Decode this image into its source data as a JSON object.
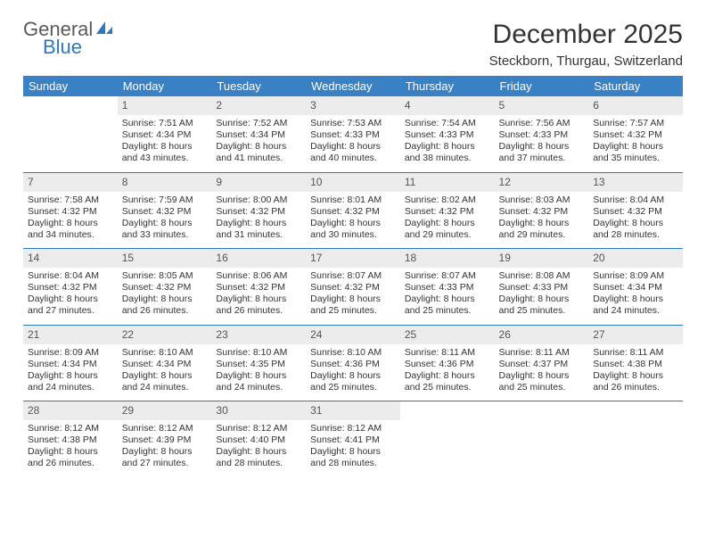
{
  "logo": {
    "general": "General",
    "blue": "Blue"
  },
  "title": "December 2025",
  "location": "Steckborn, Thurgau, Switzerland",
  "colors": {
    "header_bg": "#3a80c4",
    "header_text": "#ffffff",
    "rule": "#2f78bd",
    "daynum_bg": "#ececec",
    "daynum_text": "#555555",
    "body_text": "#333333",
    "logo_gray": "#5a5a5a",
    "logo_blue": "#2f78bd",
    "background": "#ffffff"
  },
  "typography": {
    "title_fontsize": 30,
    "location_fontsize": 15,
    "header_fontsize": 13,
    "cell_fontsize": 10.5,
    "daynum_fontsize": 12
  },
  "day_labels": [
    "Sunday",
    "Monday",
    "Tuesday",
    "Wednesday",
    "Thursday",
    "Friday",
    "Saturday"
  ],
  "weeks": [
    [
      {
        "n": "",
        "sunrise": "",
        "sunset": "",
        "daylight": ""
      },
      {
        "n": "1",
        "sunrise": "Sunrise: 7:51 AM",
        "sunset": "Sunset: 4:34 PM",
        "daylight": "Daylight: 8 hours and 43 minutes."
      },
      {
        "n": "2",
        "sunrise": "Sunrise: 7:52 AM",
        "sunset": "Sunset: 4:34 PM",
        "daylight": "Daylight: 8 hours and 41 minutes."
      },
      {
        "n": "3",
        "sunrise": "Sunrise: 7:53 AM",
        "sunset": "Sunset: 4:33 PM",
        "daylight": "Daylight: 8 hours and 40 minutes."
      },
      {
        "n": "4",
        "sunrise": "Sunrise: 7:54 AM",
        "sunset": "Sunset: 4:33 PM",
        "daylight": "Daylight: 8 hours and 38 minutes."
      },
      {
        "n": "5",
        "sunrise": "Sunrise: 7:56 AM",
        "sunset": "Sunset: 4:33 PM",
        "daylight": "Daylight: 8 hours and 37 minutes."
      },
      {
        "n": "6",
        "sunrise": "Sunrise: 7:57 AM",
        "sunset": "Sunset: 4:32 PM",
        "daylight": "Daylight: 8 hours and 35 minutes."
      }
    ],
    [
      {
        "n": "7",
        "sunrise": "Sunrise: 7:58 AM",
        "sunset": "Sunset: 4:32 PM",
        "daylight": "Daylight: 8 hours and 34 minutes."
      },
      {
        "n": "8",
        "sunrise": "Sunrise: 7:59 AM",
        "sunset": "Sunset: 4:32 PM",
        "daylight": "Daylight: 8 hours and 33 minutes."
      },
      {
        "n": "9",
        "sunrise": "Sunrise: 8:00 AM",
        "sunset": "Sunset: 4:32 PM",
        "daylight": "Daylight: 8 hours and 31 minutes."
      },
      {
        "n": "10",
        "sunrise": "Sunrise: 8:01 AM",
        "sunset": "Sunset: 4:32 PM",
        "daylight": "Daylight: 8 hours and 30 minutes."
      },
      {
        "n": "11",
        "sunrise": "Sunrise: 8:02 AM",
        "sunset": "Sunset: 4:32 PM",
        "daylight": "Daylight: 8 hours and 29 minutes."
      },
      {
        "n": "12",
        "sunrise": "Sunrise: 8:03 AM",
        "sunset": "Sunset: 4:32 PM",
        "daylight": "Daylight: 8 hours and 29 minutes."
      },
      {
        "n": "13",
        "sunrise": "Sunrise: 8:04 AM",
        "sunset": "Sunset: 4:32 PM",
        "daylight": "Daylight: 8 hours and 28 minutes."
      }
    ],
    [
      {
        "n": "14",
        "sunrise": "Sunrise: 8:04 AM",
        "sunset": "Sunset: 4:32 PM",
        "daylight": "Daylight: 8 hours and 27 minutes."
      },
      {
        "n": "15",
        "sunrise": "Sunrise: 8:05 AM",
        "sunset": "Sunset: 4:32 PM",
        "daylight": "Daylight: 8 hours and 26 minutes."
      },
      {
        "n": "16",
        "sunrise": "Sunrise: 8:06 AM",
        "sunset": "Sunset: 4:32 PM",
        "daylight": "Daylight: 8 hours and 26 minutes."
      },
      {
        "n": "17",
        "sunrise": "Sunrise: 8:07 AM",
        "sunset": "Sunset: 4:32 PM",
        "daylight": "Daylight: 8 hours and 25 minutes."
      },
      {
        "n": "18",
        "sunrise": "Sunrise: 8:07 AM",
        "sunset": "Sunset: 4:33 PM",
        "daylight": "Daylight: 8 hours and 25 minutes."
      },
      {
        "n": "19",
        "sunrise": "Sunrise: 8:08 AM",
        "sunset": "Sunset: 4:33 PM",
        "daylight": "Daylight: 8 hours and 25 minutes."
      },
      {
        "n": "20",
        "sunrise": "Sunrise: 8:09 AM",
        "sunset": "Sunset: 4:34 PM",
        "daylight": "Daylight: 8 hours and 24 minutes."
      }
    ],
    [
      {
        "n": "21",
        "sunrise": "Sunrise: 8:09 AM",
        "sunset": "Sunset: 4:34 PM",
        "daylight": "Daylight: 8 hours and 24 minutes."
      },
      {
        "n": "22",
        "sunrise": "Sunrise: 8:10 AM",
        "sunset": "Sunset: 4:34 PM",
        "daylight": "Daylight: 8 hours and 24 minutes."
      },
      {
        "n": "23",
        "sunrise": "Sunrise: 8:10 AM",
        "sunset": "Sunset: 4:35 PM",
        "daylight": "Daylight: 8 hours and 24 minutes."
      },
      {
        "n": "24",
        "sunrise": "Sunrise: 8:10 AM",
        "sunset": "Sunset: 4:36 PM",
        "daylight": "Daylight: 8 hours and 25 minutes."
      },
      {
        "n": "25",
        "sunrise": "Sunrise: 8:11 AM",
        "sunset": "Sunset: 4:36 PM",
        "daylight": "Daylight: 8 hours and 25 minutes."
      },
      {
        "n": "26",
        "sunrise": "Sunrise: 8:11 AM",
        "sunset": "Sunset: 4:37 PM",
        "daylight": "Daylight: 8 hours and 25 minutes."
      },
      {
        "n": "27",
        "sunrise": "Sunrise: 8:11 AM",
        "sunset": "Sunset: 4:38 PM",
        "daylight": "Daylight: 8 hours and 26 minutes."
      }
    ],
    [
      {
        "n": "28",
        "sunrise": "Sunrise: 8:12 AM",
        "sunset": "Sunset: 4:38 PM",
        "daylight": "Daylight: 8 hours and 26 minutes."
      },
      {
        "n": "29",
        "sunrise": "Sunrise: 8:12 AM",
        "sunset": "Sunset: 4:39 PM",
        "daylight": "Daylight: 8 hours and 27 minutes."
      },
      {
        "n": "30",
        "sunrise": "Sunrise: 8:12 AM",
        "sunset": "Sunset: 4:40 PM",
        "daylight": "Daylight: 8 hours and 28 minutes."
      },
      {
        "n": "31",
        "sunrise": "Sunrise: 8:12 AM",
        "sunset": "Sunset: 4:41 PM",
        "daylight": "Daylight: 8 hours and 28 minutes."
      },
      {
        "n": "",
        "sunrise": "",
        "sunset": "",
        "daylight": ""
      },
      {
        "n": "",
        "sunrise": "",
        "sunset": "",
        "daylight": ""
      },
      {
        "n": "",
        "sunrise": "",
        "sunset": "",
        "daylight": ""
      }
    ]
  ]
}
